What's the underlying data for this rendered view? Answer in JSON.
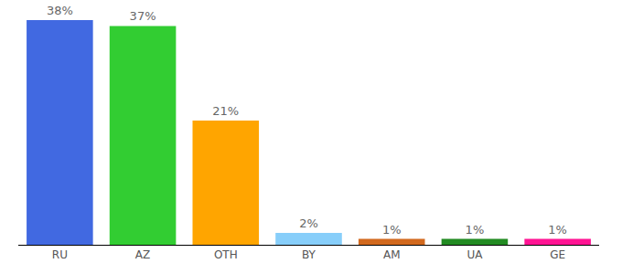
{
  "chart_data": {
    "type": "bar",
    "categories": [
      "RU",
      "AZ",
      "OTH",
      "BY",
      "AM",
      "UA",
      "GE"
    ],
    "values": [
      38,
      37,
      21,
      2,
      1,
      1,
      1
    ],
    "value_labels": [
      "38%",
      "37%",
      "21%",
      "2%",
      "1%",
      "1%",
      "1%"
    ],
    "colors": [
      "#4169e1",
      "#32cd32",
      "#ffa500",
      "#87cefa",
      "#d2691e",
      "#228b22",
      "#ff1493"
    ],
    "ylim": [
      0,
      38
    ],
    "data_labels": true,
    "tick_labels": "x",
    "grid": false
  }
}
